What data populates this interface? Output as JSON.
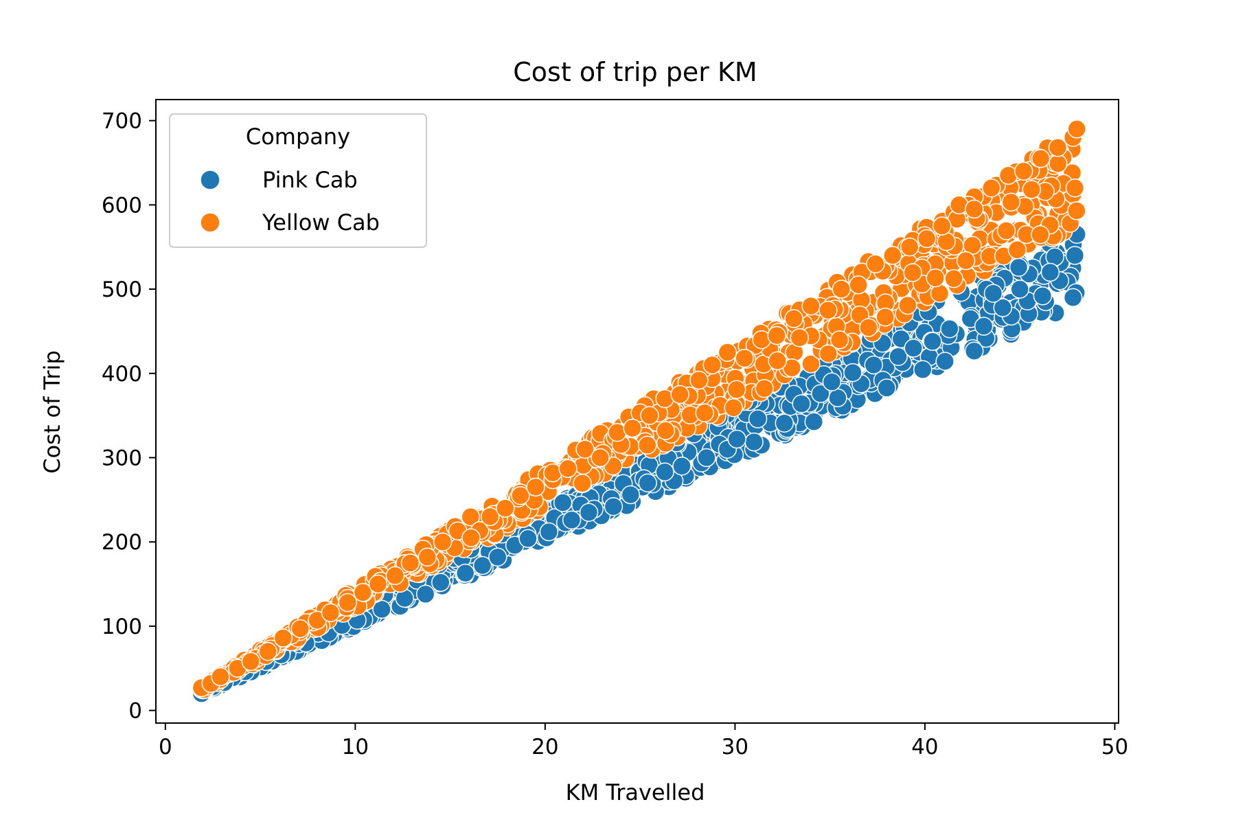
{
  "chart_data": {
    "type": "scatter",
    "title": "Cost of trip per KM",
    "xlabel": "KM Travelled",
    "ylabel": "Cost of Trip",
    "xlim": [
      -0.5,
      50.2
    ],
    "ylim": [
      -15,
      725
    ],
    "x_ticks": [
      0,
      10,
      20,
      30,
      40,
      50
    ],
    "y_ticks": [
      0,
      100,
      200,
      300,
      400,
      500,
      600,
      700
    ],
    "grid": false,
    "legend": {
      "title": "Company",
      "placement": "top-left"
    },
    "series": [
      {
        "name": "Pink Cab",
        "color": "#1f77b4",
        "x_range": [
          1.9,
          48.0
        ],
        "cost_per_km_range": [
          10.0,
          12.0
        ],
        "points": [
          [
            1.9,
            20
          ],
          [
            2.5,
            28
          ],
          [
            3.1,
            33
          ],
          [
            4.2,
            46
          ],
          [
            5.3,
            58
          ],
          [
            6.1,
            66
          ],
          [
            7.4,
            80
          ],
          [
            8.6,
            92
          ],
          [
            9.3,
            101
          ],
          [
            10.1,
            107
          ],
          [
            11.4,
            120
          ],
          [
            12.6,
            133
          ],
          [
            13.7,
            138
          ],
          [
            14.5,
            152
          ],
          [
            15.8,
            163
          ],
          [
            16.7,
            172
          ],
          [
            17.5,
            182
          ],
          [
            18.4,
            196
          ],
          [
            19.1,
            204
          ],
          [
            20.2,
            212
          ],
          [
            21.4,
            226
          ],
          [
            22.3,
            235
          ],
          [
            23.6,
            242
          ],
          [
            24.5,
            256
          ],
          [
            25.4,
            270
          ],
          [
            26.3,
            283
          ],
          [
            27.2,
            290
          ],
          [
            28.5,
            300
          ],
          [
            29.6,
            310
          ],
          [
            30.1,
            322
          ],
          [
            31.2,
            346
          ],
          [
            32.6,
            341
          ],
          [
            33.5,
            364
          ],
          [
            34.5,
            376
          ],
          [
            35.1,
            390
          ],
          [
            36.2,
            401
          ],
          [
            37.3,
            410
          ],
          [
            38.6,
            420
          ],
          [
            39.4,
            430
          ],
          [
            40.4,
            438
          ],
          [
            41.3,
            453
          ],
          [
            42.4,
            465
          ],
          [
            43.1,
            456
          ],
          [
            44.1,
            478
          ],
          [
            45.4,
            486
          ],
          [
            46.2,
            492
          ],
          [
            47.1,
            510
          ],
          [
            47.9,
            540
          ],
          [
            48.0,
            565
          ],
          [
            47.8,
            490
          ],
          [
            46.6,
            520
          ],
          [
            45.0,
            500
          ],
          [
            43.6,
            495
          ]
        ]
      },
      {
        "name": "Yellow Cab",
        "color": "#ff7f0e",
        "x_range": [
          1.9,
          48.0
        ],
        "cost_per_km_range": [
          12.0,
          14.4
        ],
        "points": [
          [
            1.9,
            27
          ],
          [
            2.4,
            32
          ],
          [
            2.9,
            40
          ],
          [
            3.8,
            50
          ],
          [
            4.5,
            58
          ],
          [
            5.4,
            70
          ],
          [
            6.2,
            86
          ],
          [
            7.1,
            97
          ],
          [
            8.0,
            107
          ],
          [
            8.7,
            116
          ],
          [
            9.6,
            128
          ],
          [
            10.4,
            140
          ],
          [
            11.2,
            150
          ],
          [
            12.1,
            160
          ],
          [
            12.9,
            175
          ],
          [
            13.8,
            182
          ],
          [
            14.6,
            200
          ],
          [
            15.4,
            213
          ],
          [
            16.1,
            205
          ],
          [
            17.1,
            230
          ],
          [
            17.9,
            240
          ],
          [
            18.7,
            255
          ],
          [
            19.5,
            265
          ],
          [
            20.4,
            282
          ],
          [
            21.2,
            287
          ],
          [
            22.1,
            310
          ],
          [
            22.9,
            300
          ],
          [
            23.8,
            330
          ],
          [
            24.6,
            335
          ],
          [
            25.5,
            350
          ],
          [
            26.3,
            370
          ],
          [
            27.1,
            375
          ],
          [
            28.1,
            392
          ],
          [
            28.8,
            410
          ],
          [
            29.6,
            425
          ],
          [
            30.5,
            418
          ],
          [
            31.4,
            440
          ],
          [
            32.2,
            445
          ],
          [
            33.1,
            465
          ],
          [
            34.0,
            480
          ],
          [
            34.9,
            475
          ],
          [
            35.6,
            500
          ],
          [
            36.5,
            505
          ],
          [
            37.4,
            530
          ],
          [
            38.3,
            540
          ],
          [
            39.2,
            550
          ],
          [
            40.1,
            560
          ],
          [
            40.9,
            575
          ],
          [
            41.8,
            600
          ],
          [
            42.6,
            595
          ],
          [
            43.5,
            620
          ],
          [
            44.4,
            635
          ],
          [
            45.2,
            640
          ],
          [
            46.1,
            655
          ],
          [
            47.0,
            668
          ],
          [
            47.8,
            680
          ],
          [
            48.0,
            690
          ],
          [
            47.9,
            620
          ]
        ]
      }
    ]
  }
}
